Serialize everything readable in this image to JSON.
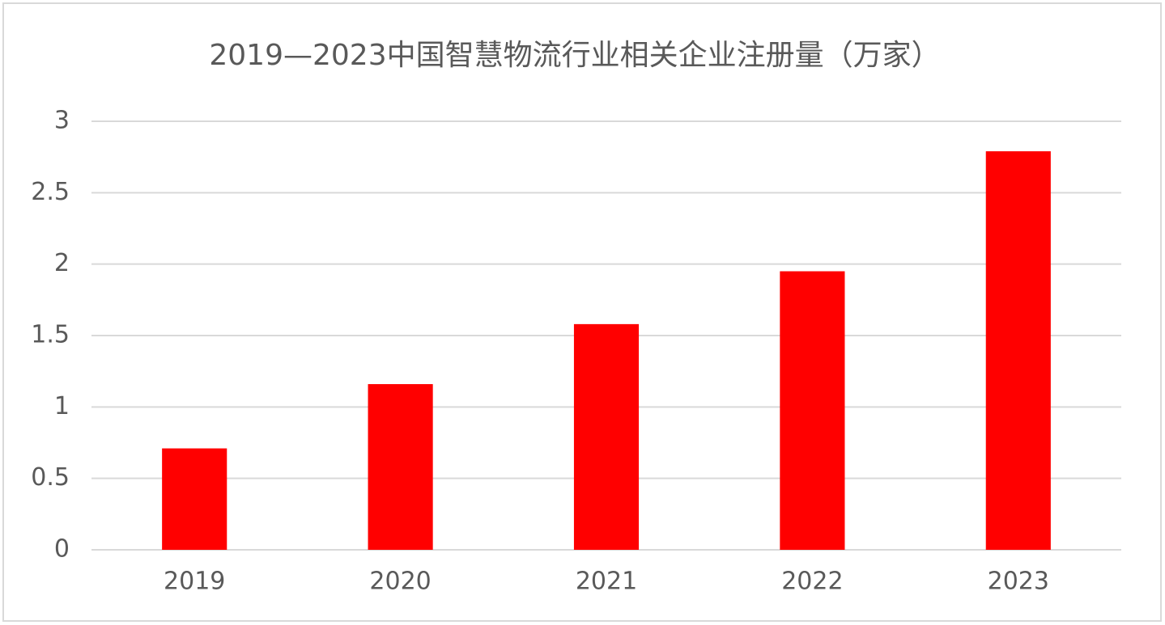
{
  "chart_data": {
    "type": "bar",
    "title": "2019—2023中国智慧物流行业相关企业注册量（万家）",
    "categories": [
      "2019",
      "2020",
      "2021",
      "2022",
      "2023"
    ],
    "values": [
      0.71,
      1.16,
      1.58,
      1.95,
      2.79
    ],
    "color": "#ff0000",
    "ylim": [
      0,
      3
    ],
    "yticks": [
      0,
      0.5,
      1,
      1.5,
      2,
      2.5,
      3
    ],
    "grid": true
  }
}
